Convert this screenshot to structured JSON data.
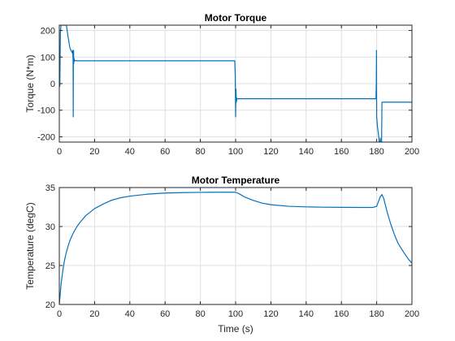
{
  "colors": {
    "series": "#0072bd"
  },
  "chart_data": [
    {
      "type": "line",
      "title": "Motor Torque",
      "xlabel": "",
      "ylabel": "Torque (N*m)",
      "xlim": [
        0,
        200
      ],
      "ylim": [
        -220,
        220
      ],
      "xticks": [
        0,
        20,
        40,
        60,
        80,
        100,
        120,
        140,
        160,
        180,
        200
      ],
      "yticks": [
        -200,
        -100,
        0,
        100,
        200
      ],
      "grid": true,
      "series": [
        {
          "x": [
            0,
            0.3,
            0.6,
            1,
            1.5,
            2,
            3,
            4,
            5,
            6,
            7,
            7.4,
            7.6,
            7.8,
            7.9,
            8.0,
            8.1,
            8.2,
            8.4,
            8.6,
            9,
            10,
            20,
            40,
            60,
            80,
            99.5,
            99.8,
            100,
            100.2,
            100.4,
            100.7,
            101,
            102,
            110,
            130,
            150,
            170,
            179.6,
            179.8,
            179.9,
            180.0,
            180.1,
            180.2,
            180.4,
            181,
            181.5,
            182,
            182.1,
            182.2,
            182.5,
            182.8,
            183,
            183.2,
            183.5,
            184,
            190,
            200
          ],
          "y": [
            30,
            -10,
            190,
            220,
            220,
            220,
            220,
            220,
            175,
            135,
            120,
            115,
            125,
            90,
            -125,
            100,
            125,
            75,
            95,
            85,
            87,
            86,
            86,
            86,
            86,
            86,
            86,
            30,
            -125,
            -20,
            -70,
            -55,
            -57,
            -57,
            -57,
            -57,
            -57,
            -57,
            -57,
            0,
            125,
            -130,
            -130,
            -140,
            -160,
            -190,
            -220,
            -220,
            -205,
            -220,
            -220,
            -220,
            -70,
            -70,
            -70,
            -70,
            -70,
            -70
          ]
        }
      ]
    },
    {
      "type": "line",
      "title": "Motor Temperature",
      "xlabel": "Time (s)",
      "ylabel": "Temperature (degC)",
      "xlim": [
        0,
        200
      ],
      "ylim": [
        20,
        35
      ],
      "xticks": [
        0,
        20,
        40,
        60,
        80,
        100,
        120,
        140,
        160,
        180,
        200
      ],
      "yticks": [
        20,
        25,
        30,
        35
      ],
      "grid": true,
      "series": [
        {
          "x": [
            0,
            1,
            2,
            3,
            4,
            5,
            6,
            8,
            10,
            12,
            15,
            20,
            25,
            30,
            35,
            40,
            50,
            60,
            70,
            80,
            90,
            100,
            102,
            105,
            110,
            115,
            120,
            130,
            140,
            150,
            160,
            170,
            178,
            180,
            181,
            182,
            183,
            184,
            186,
            188,
            190,
            192,
            195,
            198,
            200
          ],
          "y": [
            20,
            22.6,
            24.4,
            25.7,
            26.7,
            27.5,
            28.2,
            29.2,
            30.0,
            30.6,
            31.4,
            32.3,
            32.9,
            33.4,
            33.7,
            33.9,
            34.15,
            34.3,
            34.35,
            34.38,
            34.4,
            34.4,
            34.2,
            33.8,
            33.35,
            33.0,
            32.8,
            32.6,
            32.52,
            32.48,
            32.46,
            32.45,
            32.45,
            32.6,
            33.2,
            33.8,
            34.1,
            33.6,
            31.8,
            30.3,
            29.0,
            27.9,
            26.8,
            25.8,
            25.3
          ]
        }
      ]
    }
  ]
}
